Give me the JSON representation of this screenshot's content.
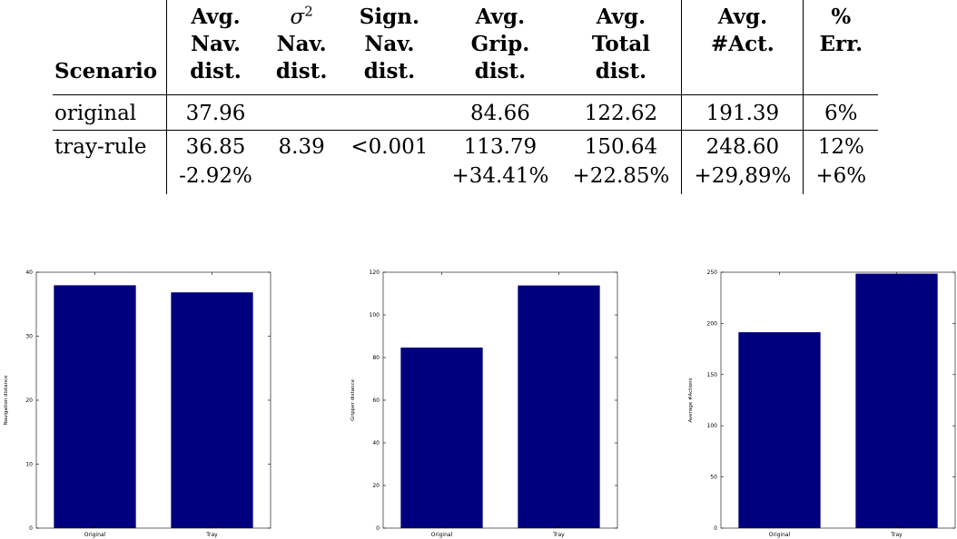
{
  "table": {
    "headers": [
      {
        "key": "scenario",
        "lines": [
          "Scenario"
        ]
      },
      {
        "key": "avg_nav",
        "lines": [
          "Avg.",
          "Nav.",
          "dist."
        ]
      },
      {
        "key": "sigma_nav",
        "symbol": "σ",
        "superscript": "2",
        "lines": [
          "Nav.",
          "dist."
        ]
      },
      {
        "key": "sign_nav",
        "lines": [
          "Sign.",
          "Nav.",
          "dist."
        ]
      },
      {
        "key": "avg_grip",
        "lines": [
          "Avg.",
          "Grip.",
          "dist."
        ]
      },
      {
        "key": "avg_total",
        "lines": [
          "Avg.",
          "Total",
          "dist."
        ]
      },
      {
        "key": "avg_act",
        "lines": [
          "Avg.",
          "#Act."
        ]
      },
      {
        "key": "err",
        "lines": [
          "%",
          "Err."
        ]
      }
    ],
    "rows": [
      [
        "original",
        "37.96",
        "",
        "",
        "84.66",
        "122.62",
        "191.39",
        "6%"
      ],
      [
        "tray-rule",
        "36.85",
        "8.39",
        "<0.001",
        "113.79",
        "150.64",
        "248.60",
        "12%"
      ],
      [
        "",
        "-2.92%",
        "",
        "",
        "+34.41%",
        "+22.85%",
        "+29,89%",
        "+6%"
      ]
    ]
  },
  "chart_data": [
    {
      "type": "bar",
      "categories": [
        "Original",
        "Tray"
      ],
      "values": [
        37.96,
        36.85
      ],
      "title": "",
      "xlabel": "",
      "ylabel": "Navigation distance",
      "ylim": [
        0,
        40
      ],
      "yticks": [
        "0",
        "10",
        "20",
        "30",
        "40"
      ],
      "grid": false,
      "bar_color": "#00007f"
    },
    {
      "type": "bar",
      "categories": [
        "Original",
        "Tray"
      ],
      "values": [
        84.66,
        113.79
      ],
      "title": "",
      "xlabel": "",
      "ylabel": "Gripper distance",
      "ylim": [
        0,
        120
      ],
      "yticks": [
        "0",
        "20",
        "40",
        "60",
        "80",
        "100",
        "120"
      ],
      "grid": false,
      "bar_color": "#00007f"
    },
    {
      "type": "bar",
      "categories": [
        "Original",
        "Tray"
      ],
      "values": [
        191.39,
        248.6
      ],
      "title": "",
      "xlabel": "",
      "ylabel": "Average #Actions",
      "ylim": [
        0,
        250
      ],
      "yticks": [
        "0",
        "50",
        "100",
        "150",
        "200",
        "250"
      ],
      "grid": false,
      "bar_color": "#00007f"
    }
  ]
}
